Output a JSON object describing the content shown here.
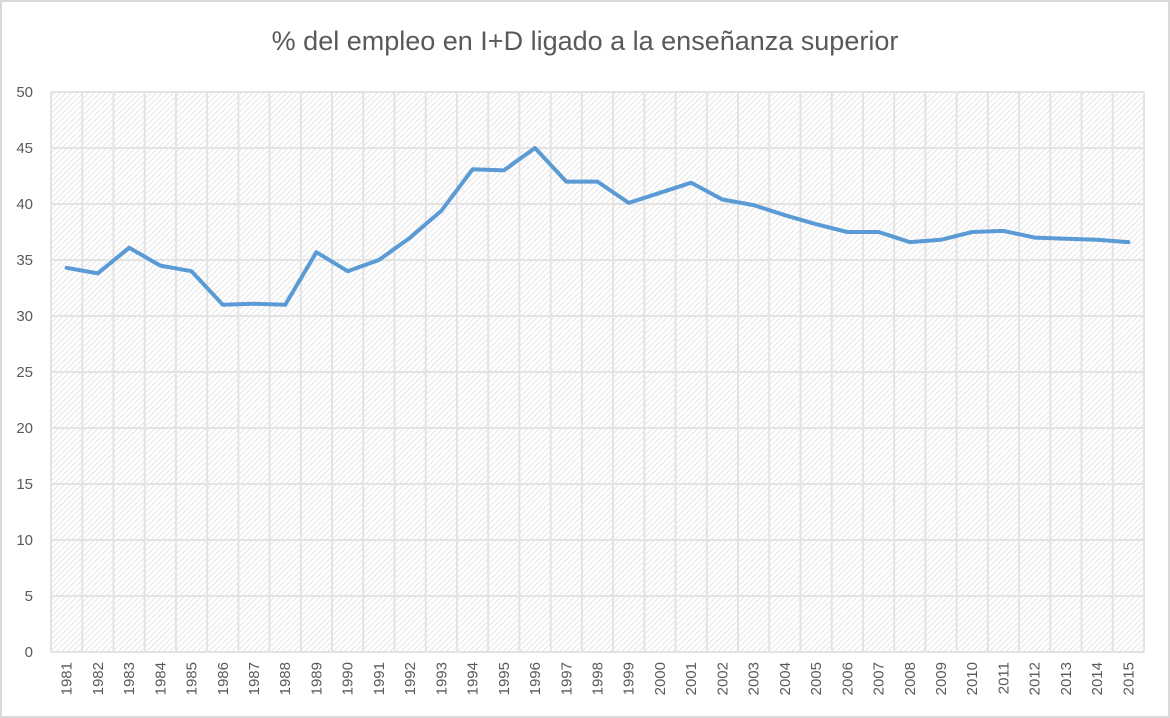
{
  "chart_data": {
    "type": "line",
    "title": "% del empleo en I+D ligado a la enseñanza superior",
    "xlabel": "",
    "ylabel": "",
    "ylim": [
      0,
      50
    ],
    "yticks": [
      0,
      5,
      10,
      15,
      20,
      25,
      30,
      35,
      40,
      45,
      50
    ],
    "grid": true,
    "legend": null,
    "categories": [
      "1981",
      "1982",
      "1983",
      "1984",
      "1985",
      "1986",
      "1987",
      "1988",
      "1989",
      "1990",
      "1991",
      "1992",
      "1993",
      "1994",
      "1995",
      "1996",
      "1997",
      "1998",
      "1999",
      "2000",
      "2001",
      "2002",
      "2003",
      "2004",
      "2005",
      "2006",
      "2007",
      "2008",
      "2009",
      "2010",
      "2011",
      "2012",
      "2013",
      "2014",
      "2015"
    ],
    "series": [
      {
        "name": "% del empleo en I+D ligado a la enseñanza superior",
        "color": "#5b9bd5",
        "values": [
          34.3,
          33.8,
          36.1,
          34.5,
          34.0,
          31.0,
          31.1,
          31.0,
          35.7,
          34.0,
          35.0,
          37.0,
          39.4,
          43.1,
          43.0,
          45.0,
          42.0,
          42.0,
          40.1,
          41.0,
          41.9,
          40.4,
          39.9,
          39.0,
          38.2,
          37.5,
          37.5,
          36.6,
          36.8,
          37.5,
          37.6,
          37.0,
          36.9,
          36.8,
          36.6
        ]
      }
    ]
  }
}
